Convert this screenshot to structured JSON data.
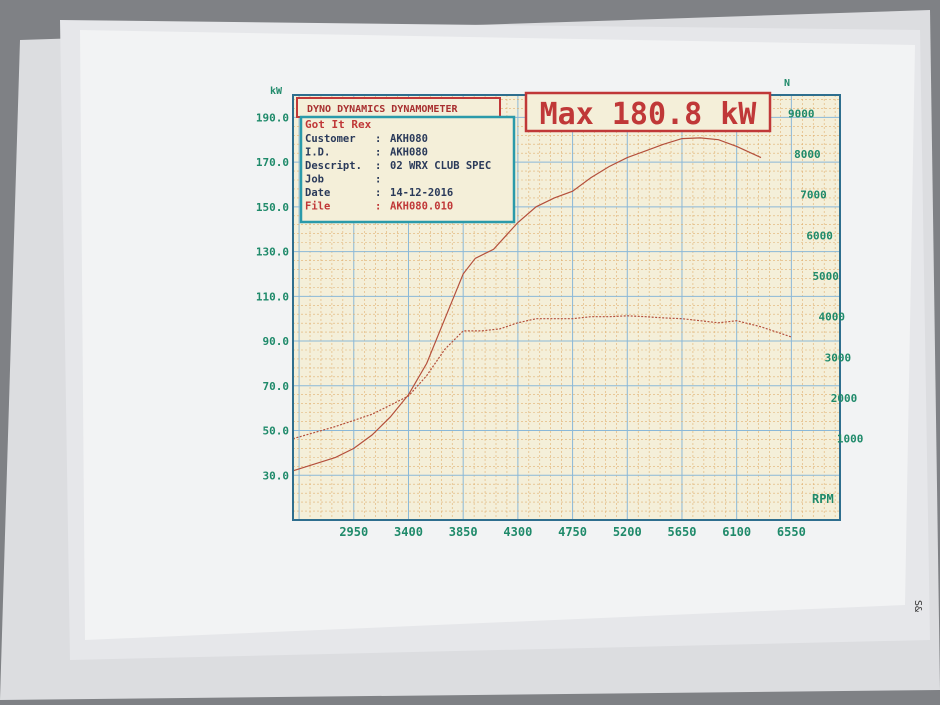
{
  "chart_data": {
    "type": "line",
    "title": "DYNO DYNAMICS DYNAMOMETER",
    "headline": "Max 180.8 kW",
    "info": {
      "heading": "Got It Rex",
      "rows": [
        {
          "label": "Customer",
          "value": "AKH080"
        },
        {
          "label": "I.D.",
          "value": "AKH080"
        },
        {
          "label": "Descript.",
          "value": "02 WRX CLUB SPEC"
        },
        {
          "label": "Job",
          "value": ""
        },
        {
          "label": "Date",
          "value": "14-12-2016"
        },
        {
          "label": "File",
          "value": "AKH080.010"
        }
      ]
    },
    "xlabel": "RPM",
    "ylabel_left": "kW",
    "ylabel_right": "N",
    "xlim": [
      2450,
      6950
    ],
    "ylim_left": [
      10,
      200
    ],
    "ylim_right": [
      -1000,
      9450
    ],
    "xticks": [
      2950,
      3400,
      3850,
      4300,
      4750,
      5200,
      5650,
      6100,
      6550
    ],
    "xtick_labels": [
      "2950",
      "3400",
      "3850",
      "4300",
      "4750",
      "5200",
      "5650",
      "6100",
      "6550"
    ],
    "yticks_left": [
      30,
      50,
      70,
      90,
      110,
      130,
      150,
      170,
      190
    ],
    "ytick_labels_left": [
      "30.0",
      "50.0",
      "70.0",
      "90.0",
      "110.0",
      "130.0",
      "150.0",
      "170.0",
      "190.0"
    ],
    "yticks_right": [
      1000,
      2000,
      3000,
      4000,
      5000,
      6000,
      7000,
      8000,
      9000
    ],
    "ytick_labels_right": [
      "1000",
      "2000",
      "3000",
      "4000",
      "5000",
      "6000",
      "7000",
      "8000",
      "9000"
    ],
    "grid": true,
    "series": [
      {
        "axis": "left",
        "style": "solid",
        "x": [
          2450,
          2800,
          2950,
          3100,
          3250,
          3400,
          3550,
          3700,
          3850,
          3950,
          4100,
          4300,
          4450,
          4600,
          4750,
          4900,
          5050,
          5200,
          5350,
          5500,
          5650,
          5800,
          5950,
          6100,
          6300
        ],
        "y": [
          32,
          38,
          42,
          48,
          56,
          66,
          80,
          100,
          120,
          127,
          131,
          143,
          150,
          154,
          157,
          163,
          168,
          172,
          175,
          178,
          180.5,
          180.8,
          180,
          177,
          172
        ]
      },
      {
        "axis": "right",
        "style": "dotted",
        "x": [
          2450,
          2800,
          3100,
          3400,
          3550,
          3700,
          3850,
          4000,
          4150,
          4300,
          4450,
          4600,
          4750,
          4900,
          5050,
          5200,
          5350,
          5500,
          5650,
          5800,
          5950,
          6100,
          6300,
          6550
        ],
        "y": [
          1000,
          1300,
          1600,
          2050,
          2550,
          3200,
          3650,
          3650,
          3700,
          3850,
          3950,
          3950,
          3950,
          4000,
          4000,
          4020,
          4000,
          3970,
          3950,
          3900,
          3850,
          3900,
          3750,
          3500
        ]
      }
    ],
    "colors": {
      "curve": "#b4503c",
      "axis": "#2e6e8e",
      "tick_text": "#1f8a6a",
      "grid_major": "#8ab8d8",
      "grid_minor": "#e0b070",
      "paper": "#f4efd9",
      "red": "#c03838",
      "teal": "#2a9aaa"
    }
  },
  "edge_text": "S&"
}
